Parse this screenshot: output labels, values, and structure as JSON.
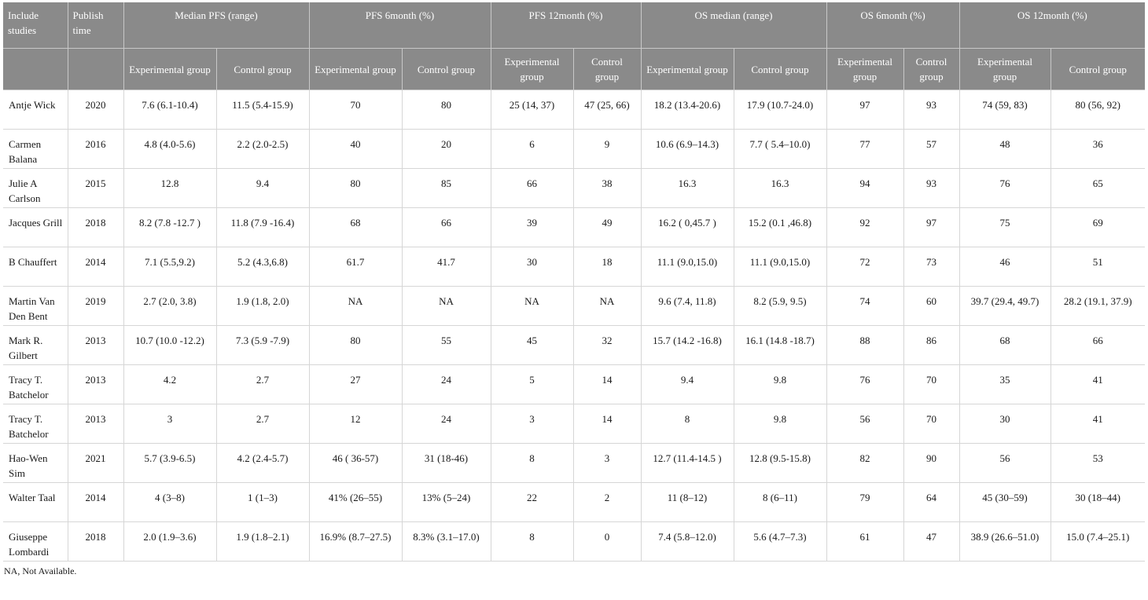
{
  "table": {
    "header_top": [
      "Include studies",
      "Publish time",
      "Median PFS (range)",
      "PFS 6month (%)",
      "PFS 12month (%)",
      "OS median (range)",
      "OS 6month (%)",
      "OS 12month (%)"
    ],
    "header_sub": [
      "Experimental group",
      "Control group",
      "Experimental group",
      "Control group",
      "Experimental group",
      "Control group",
      "Experimental group",
      "Control group",
      "Experimental group",
      "Control group",
      "Experimental group",
      "Control group"
    ],
    "rows": [
      [
        "Antje Wick",
        "2020",
        "7.6 (6.1-10.4)",
        "11.5 (5.4-15.9)",
        "70",
        "80",
        "25 (14, 37)",
        "47 (25, 66)",
        "18.2 (13.4-20.6)",
        "17.9 (10.7-24.0)",
        "97",
        "93",
        "74 (59, 83)",
        "80 (56, 92)"
      ],
      [
        "Carmen Balana",
        "2016",
        "4.8 (4.0-5.6)",
        "2.2 (2.0-2.5)",
        "40",
        "20",
        "6",
        "9",
        "10.6 (6.9–14.3)",
        "7.7 ( 5.4–10.0)",
        "77",
        "57",
        "48",
        "36"
      ],
      [
        "Julie A Carlson",
        "2015",
        "12.8",
        "9.4",
        "80",
        "85",
        "66",
        "38",
        "16.3",
        "16.3",
        "94",
        "93",
        "76",
        "65"
      ],
      [
        "Jacques Grill",
        "2018",
        "8.2 (7.8 -12.7 )",
        "11.8 (7.9 -16.4)",
        "68",
        "66",
        "39",
        "49",
        "16.2 ( 0,45.7 )",
        "15.2 (0.1 ,46.8)",
        "92",
        "97",
        "75",
        "69"
      ],
      [
        "B Chauffert",
        "2014",
        "7.1 (5.5,9.2)",
        "5.2 (4.3,6.8)",
        "61.7",
        "41.7",
        "30",
        "18",
        "11.1 (9.0,15.0)",
        "11.1 (9.0,15.0)",
        "72",
        "73",
        "46",
        "51"
      ],
      [
        "Martin Van Den Bent",
        "2019",
        "2.7 (2.0, 3.8)",
        "1.9 (1.8, 2.0)",
        "NA",
        "NA",
        "NA",
        "NA",
        "9.6 (7.4, 11.8)",
        "8.2 (5.9, 9.5)",
        "74",
        "60",
        "39.7 (29.4, 49.7)",
        "28.2 (19.1, 37.9)"
      ],
      [
        "Mark R. Gilbert",
        "2013",
        "10.7 (10.0 -12.2)",
        "7.3 (5.9 -7.9)",
        "80",
        "55",
        "45",
        "32",
        "15.7 (14.2 -16.8)",
        "16.1 (14.8 -18.7)",
        "88",
        "86",
        "68",
        "66"
      ],
      [
        "Tracy T. Batchelor",
        "2013",
        "4.2",
        "2.7",
        "27",
        "24",
        "5",
        "14",
        "9.4",
        "9.8",
        "76",
        "70",
        "35",
        "41"
      ],
      [
        "Tracy T. Batchelor",
        "2013",
        "3",
        "2.7",
        "12",
        "24",
        "3",
        "14",
        "8",
        "9.8",
        "56",
        "70",
        "30",
        "41"
      ],
      [
        "Hao-Wen Sim",
        "2021",
        "5.7 (3.9-6.5)",
        "4.2 (2.4-5.7)",
        "46 ( 36-57)",
        "31 (18-46)",
        "8",
        "3",
        "12.7 (11.4-14.5 )",
        "12.8 (9.5-15.8)",
        "82",
        "90",
        "56",
        "53"
      ],
      [
        "Walter Taal",
        "2014",
        "4 (3–8)",
        "1 (1–3)",
        "41% (26–55)",
        "13% (5–24)",
        "22",
        "2",
        "11 (8–12)",
        "8 (6–11)",
        "79",
        "64",
        "45 (30–59)",
        "30 (18–44)"
      ],
      [
        "Giuseppe Lombardi",
        "2018",
        "2.0 (1.9–3.6)",
        "1.9 (1.8–2.1)",
        "16.9% (8.7–27.5)",
        "8.3% (3.1–17.0)",
        "8",
        "0",
        "7.4 (5.8–12.0)",
        "5.6 (4.7–7.3)",
        "61",
        "47",
        "38.9 (26.6–51.0)",
        "15.0 (7.4–25.1)"
      ]
    ]
  },
  "footnote": "NA, Not Available."
}
